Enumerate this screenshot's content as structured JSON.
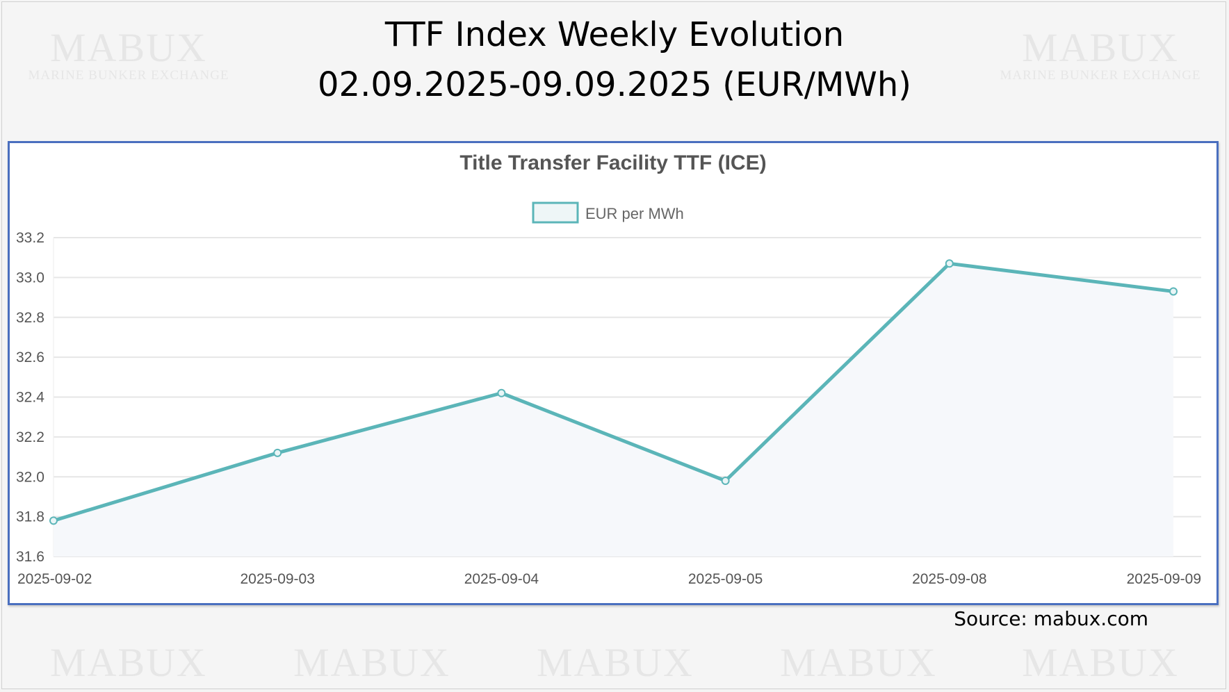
{
  "page": {
    "title_line1": "TTF Index Weekly Evolution",
    "title_line2": "02.09.2025-09.09.2025 (EUR/MWh)",
    "source": "Source: mabux.com",
    "watermark_main": "MABUX",
    "watermark_sub": "MARINE BUNKER EXCHANGE"
  },
  "chart_data": {
    "type": "line",
    "title": "Title Transfer Facility TTF (ICE)",
    "xlabel": "",
    "ylabel": "",
    "categories": [
      "2025-09-02",
      "2025-09-03",
      "2025-09-04",
      "2025-09-05",
      "2025-09-08",
      "2025-09-09"
    ],
    "series": [
      {
        "name": "EUR per MWh",
        "values": [
          31.78,
          32.12,
          32.42,
          31.98,
          33.07,
          32.93
        ],
        "color": "#5bb5b8"
      }
    ],
    "ylim": [
      31.6,
      33.2
    ],
    "yticks": [
      "31.6",
      "31.8",
      "32.0",
      "32.2",
      "32.4",
      "32.6",
      "32.8",
      "33.0",
      "33.2"
    ],
    "grid": true,
    "legend": "top-center",
    "area_fill": true,
    "border_color": "#4a6fbf"
  }
}
